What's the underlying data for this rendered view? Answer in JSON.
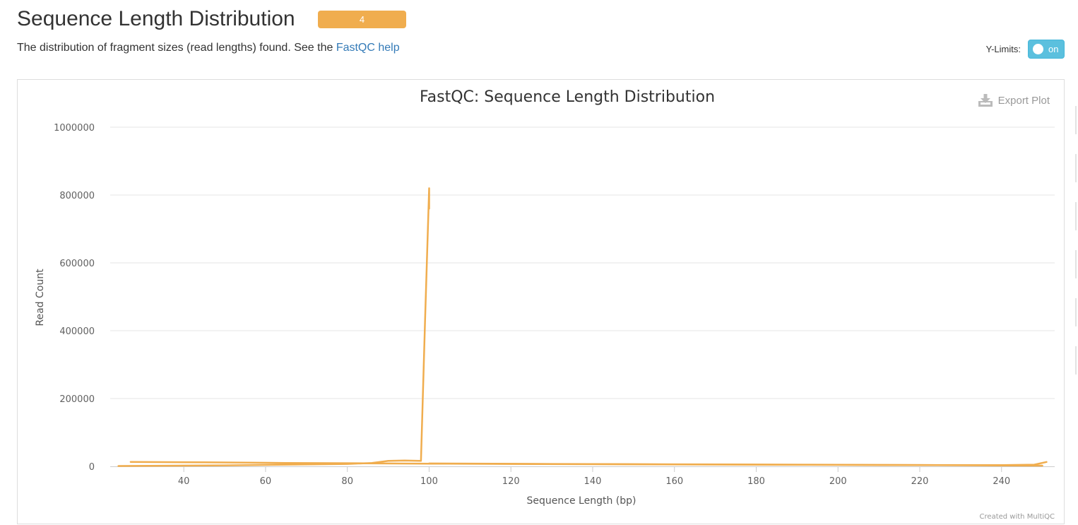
{
  "section": {
    "title": "Sequence Length Distribution",
    "badge": "4",
    "badge_color": "#f0ad4e",
    "description_prefix": "The distribution of fragment sizes (read lengths) found. See the ",
    "description_link": "FastQC help"
  },
  "controls": {
    "ylimits_label": "Y-Limits:",
    "ylimits_toggle": "on",
    "toggle_color": "#5bc0de"
  },
  "export": {
    "label": "Export Plot",
    "icon": "download-icon"
  },
  "credit": "Created with MultiQC",
  "chart_data": {
    "type": "line",
    "title": "FastQC: Sequence Length Distribution",
    "xlabel": "Sequence Length (bp)",
    "ylabel": "Read Count",
    "xlim": [
      22,
      253
    ],
    "ylim": [
      0,
      1000000
    ],
    "xticks": [
      40,
      60,
      80,
      100,
      120,
      140,
      160,
      180,
      200,
      220,
      240
    ],
    "yticks": [
      0,
      200000,
      400000,
      600000,
      800000,
      1000000
    ],
    "ytick_labels": [
      "0",
      "200000",
      "400000",
      "600000",
      "800000",
      "1000000"
    ],
    "grid": true,
    "line_color": "#f0ad4e",
    "series": [
      {
        "x": [
          27,
          45,
          65,
          85,
          100,
          120,
          150,
          180,
          210,
          240,
          248,
          251
        ],
        "y": [
          13000,
          12000,
          10000,
          9000,
          8000,
          7000,
          6000,
          5000,
          4000,
          3500,
          5000,
          13000
        ]
      },
      {
        "x": [
          24,
          50,
          80,
          86,
          88,
          90,
          94,
          98,
          99,
          100,
          100
        ],
        "y": [
          1000,
          3000,
          7000,
          10000,
          13000,
          16000,
          17000,
          16000,
          430000,
          820000,
          760000
        ]
      },
      {
        "x": [
          100,
          130,
          160,
          190,
          220,
          250
        ],
        "y": [
          8500,
          7000,
          6000,
          5000,
          4000,
          2000
        ]
      }
    ]
  }
}
